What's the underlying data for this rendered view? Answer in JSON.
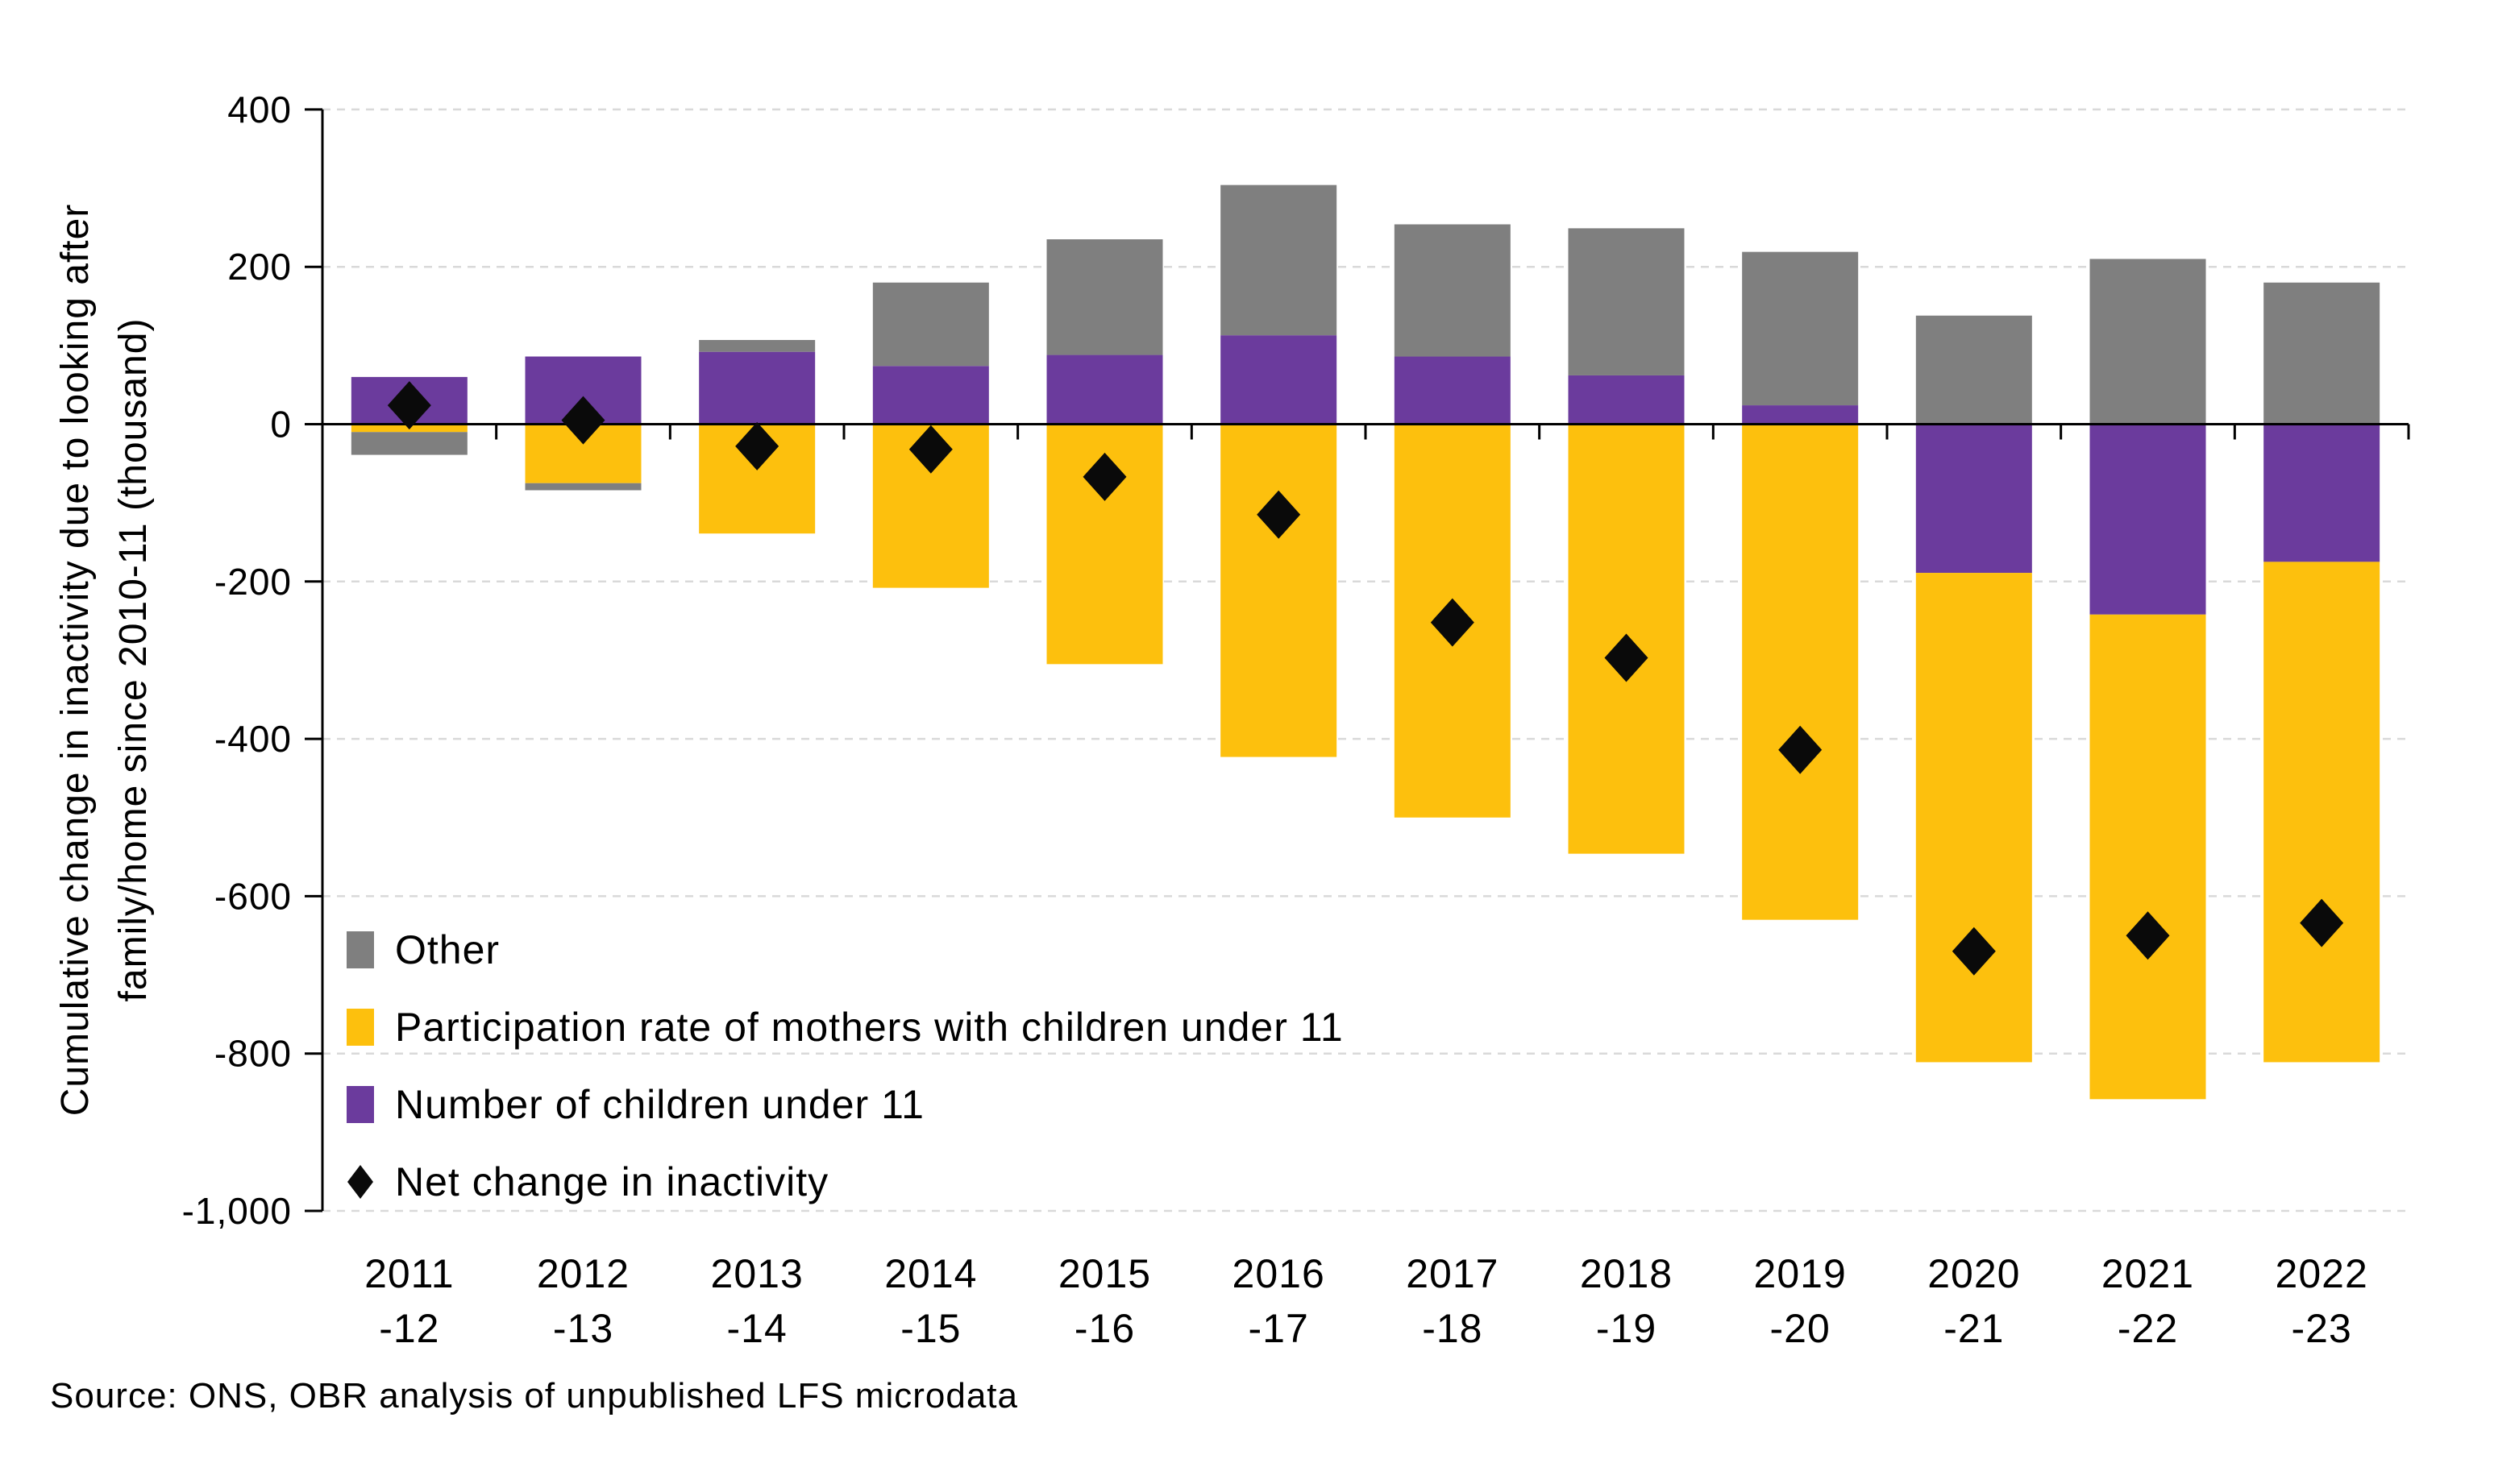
{
  "colors": {
    "purple": "#6B3B9D",
    "yellow": "#FDC00D",
    "gray": "#7F7F7F",
    "diamond": "#0A0A0A",
    "grid": "#D9D9D9",
    "axis": "#000000"
  },
  "y_axis": {
    "title_line1": "Cumulative change in inactivity due to looking after",
    "title_line2": "family/home since 2010-11 (thousand)",
    "tick_labels": [
      "400",
      "200",
      "0",
      "-200",
      "-400",
      "-600",
      "-800",
      "-1,000"
    ],
    "tick_values": [
      400,
      200,
      0,
      -200,
      -400,
      -600,
      -800,
      -1000
    ]
  },
  "x_axis": {
    "labels": [
      [
        "2011",
        "-12"
      ],
      [
        "2012",
        "-13"
      ],
      [
        "2013",
        "-14"
      ],
      [
        "2014",
        "-15"
      ],
      [
        "2015",
        "-16"
      ],
      [
        "2016",
        "-17"
      ],
      [
        "2017",
        "-18"
      ],
      [
        "2018",
        "-19"
      ],
      [
        "2019",
        "-20"
      ],
      [
        "2020",
        "-21"
      ],
      [
        "2021",
        "-22"
      ],
      [
        "2022",
        "-23"
      ]
    ]
  },
  "legend": {
    "items": [
      {
        "label": "Other",
        "marker": "square",
        "color": "gray"
      },
      {
        "label": "Participation rate of mothers with children under 11",
        "marker": "square",
        "color": "yellow"
      },
      {
        "label": "Number of children under 11",
        "marker": "square",
        "color": "purple"
      },
      {
        "label": "Net change in inactivity",
        "marker": "diamond",
        "color": "diamond"
      }
    ]
  },
  "source": "Source: ONS, OBR analysis of unpublished LFS microdata",
  "chart_data": {
    "type": "bar",
    "stacked": true,
    "unit": "thousand",
    "title": "",
    "xlabel": "",
    "ylabel": "Cumulative change in inactivity due to looking after family/home since 2010-11 (thousand)",
    "ylim": [
      -1000,
      400
    ],
    "ytick_step": 200,
    "grid": "dashed-horizontal",
    "legend_position": "inside-bottom-left",
    "categories": [
      "2011-12",
      "2012-13",
      "2013-14",
      "2014-15",
      "2015-16",
      "2016-17",
      "2017-18",
      "2018-19",
      "2019-20",
      "2020-21",
      "2021-22",
      "2022-23"
    ],
    "series": [
      {
        "name": "Number of children under 11",
        "color": "purple",
        "values": [
          60,
          86,
          92,
          74,
          88,
          113,
          86,
          62,
          24,
          -189,
          -242,
          -175
        ]
      },
      {
        "name": "Participation rate of mothers with children under 11",
        "color": "yellow",
        "values": [
          -10,
          -75,
          -139,
          -208,
          -305,
          -423,
          -500,
          -546,
          -630,
          -622,
          -616,
          -636
        ]
      },
      {
        "name": "Other",
        "color": "gray",
        "values": [
          -29,
          -9,
          15,
          106,
          147,
          191,
          168,
          187,
          195,
          138,
          210,
          180
        ]
      }
    ],
    "scatter_series": {
      "name": "Net change in inactivity",
      "marker": "diamond",
      "values": [
        24,
        5,
        -28,
        -32,
        -67,
        -115,
        -252,
        -297,
        -414,
        -670,
        -650,
        -634
      ]
    }
  }
}
